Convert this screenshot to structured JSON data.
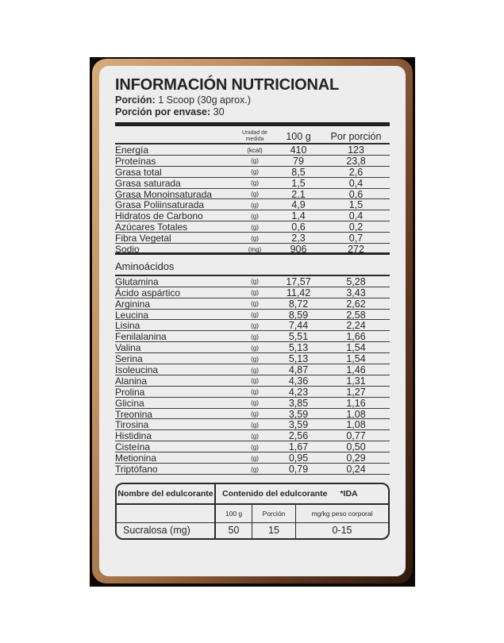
{
  "colors": {
    "page_bg": "#ffffff",
    "photo_bg": "#0d0805",
    "frame_tan": "#d6ab7a",
    "frame_dark": "#2f1b0d",
    "label_bg": "#ededed",
    "text": "#262626"
  },
  "header": {
    "title": "INFORMACIÓN NUTRICIONAL",
    "serving_label": "Porción:",
    "serving_value": "1 Scoop (30g aprox.)",
    "servings_per_container_label": "Porción por envase:",
    "servings_per_container_value": "30"
  },
  "columns": {
    "unit_header": "Unidad de medida",
    "per_100g": "100 g",
    "per_portion": "Por porción"
  },
  "nutrients": {
    "rows": [
      {
        "name": "Energía",
        "unit": "(kcal)",
        "per_100g": "410",
        "per_portion": "123"
      },
      {
        "name": "Proteínas",
        "unit": "(g)",
        "per_100g": "79",
        "per_portion": "23,8"
      },
      {
        "name": "Grasa total",
        "unit": "(g)",
        "per_100g": "8,5",
        "per_portion": "2,6"
      },
      {
        "name": "Grasa saturada",
        "unit": "(g)",
        "per_100g": "1,5",
        "per_portion": "0,4"
      },
      {
        "name": "Grasa Monoinsaturada",
        "unit": "(g)",
        "per_100g": "2,1",
        "per_portion": "0,6"
      },
      {
        "name": "Grasa Poliinsaturada",
        "unit": "(g)",
        "per_100g": "4,9",
        "per_portion": "1,5"
      },
      {
        "name": "Hidratos de Carbono",
        "unit": "(g)",
        "per_100g": "1,4",
        "per_portion": "0,4"
      },
      {
        "name": "Azúcares Totales",
        "unit": "(g)",
        "per_100g": "0,6",
        "per_portion": "0,2"
      },
      {
        "name": "Fibra Vegetal",
        "unit": "(g)",
        "per_100g": "2,3",
        "per_portion": "0,7"
      },
      {
        "name": "Sodio",
        "unit": "(mg)",
        "per_100g": "906",
        "per_portion": "272"
      }
    ]
  },
  "amino_acids": {
    "title": "Aminoácidos",
    "rows": [
      {
        "name": "Glutamina",
        "unit": "(g)",
        "per_100g": "17,57",
        "per_portion": "5,28"
      },
      {
        "name": "Ácido aspártico",
        "unit": "(g)",
        "per_100g": "11,42",
        "per_portion": "3,43"
      },
      {
        "name": "Arginina",
        "unit": "(g)",
        "per_100g": "8,72",
        "per_portion": "2,62"
      },
      {
        "name": "Leucina",
        "unit": "(g)",
        "per_100g": "8,59",
        "per_portion": "2,58"
      },
      {
        "name": "Lisina",
        "unit": "(g)",
        "per_100g": "7,44",
        "per_portion": "2,24"
      },
      {
        "name": "Fenilalanina",
        "unit": "(g)",
        "per_100g": "5,51",
        "per_portion": "1,66"
      },
      {
        "name": "Valina",
        "unit": "(g)",
        "per_100g": "5,13",
        "per_portion": "1,54"
      },
      {
        "name": "Serina",
        "unit": "(g)",
        "per_100g": "5,13",
        "per_portion": "1,54"
      },
      {
        "name": "Isoleucina",
        "unit": "(g)",
        "per_100g": "4,87",
        "per_portion": "1,46"
      },
      {
        "name": "Alanina",
        "unit": "(g)",
        "per_100g": "4,36",
        "per_portion": "1,31"
      },
      {
        "name": "Prolina",
        "unit": "(g)",
        "per_100g": "4,23",
        "per_portion": "1,27"
      },
      {
        "name": "Glicina",
        "unit": "(g)",
        "per_100g": "3,85",
        "per_portion": "1,16"
      },
      {
        "name": "Treonina",
        "unit": "(g)",
        "per_100g": "3,59",
        "per_portion": "1,08"
      },
      {
        "name": "Tirosina",
        "unit": "(g)",
        "per_100g": "3,59",
        "per_portion": "1,08"
      },
      {
        "name": "Histidina",
        "unit": "(g)",
        "per_100g": "2,56",
        "per_portion": "0,77"
      },
      {
        "name": "Cisteína",
        "unit": "(g)",
        "per_100g": "1,67",
        "per_portion": "0,50"
      },
      {
        "name": "Metionina",
        "unit": "(g)",
        "per_100g": "0,95",
        "per_portion": "0,29"
      },
      {
        "name": "Triptófano",
        "unit": "(g)",
        "per_100g": "0,79",
        "per_portion": "0,24"
      }
    ]
  },
  "sweetener": {
    "name_header": "Nombre del edulcorante",
    "content_header": "Contenido del edulcorante",
    "ida_header": "*IDA",
    "sub_per_100g": "100 g",
    "sub_portion": "Porción",
    "sub_ida": "mg/kg peso corporal",
    "rows": [
      {
        "name": "Sucralosa (mg)",
        "per_100g": "50",
        "portion": "15",
        "ida": "0-15"
      }
    ]
  }
}
